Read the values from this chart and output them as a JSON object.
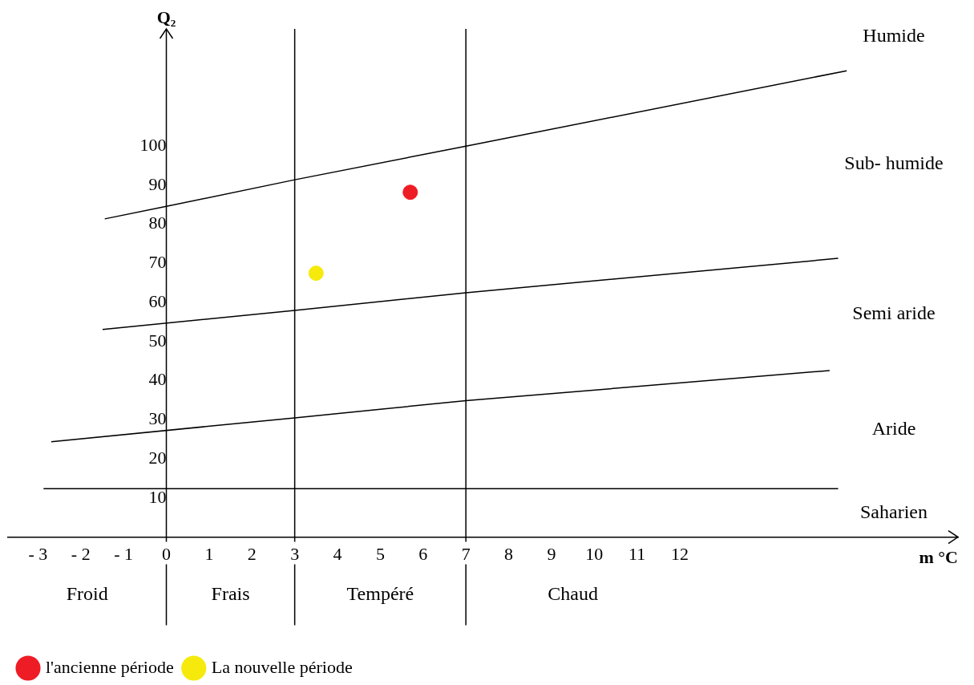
{
  "chart_data": {
    "type": "scatter",
    "xlabel": "m °C",
    "ylabel": "Q₂",
    "xlim": [
      -3.7,
      18.5
    ],
    "ylim": [
      0,
      130
    ],
    "xticks": [
      {
        "value": -3,
        "label": "- 3"
      },
      {
        "value": -2,
        "label": "- 2"
      },
      {
        "value": -1,
        "label": "- 1"
      },
      0,
      1,
      2,
      3,
      4,
      5,
      6,
      7,
      8,
      9,
      10,
      11,
      12
    ],
    "yticks": [
      10,
      20,
      30,
      40,
      50,
      60,
      70,
      80,
      90,
      100
    ],
    "grid": false,
    "legend": "bottom left",
    "marker": "circle",
    "series": [
      {
        "name": "l'ancienne période",
        "color": "#ee1c25",
        "x": [
          5.7
        ],
        "values": [
          88.2
        ]
      },
      {
        "name": "La nouvelle période",
        "color": "#f5ea0c",
        "x": [
          3.5
        ],
        "values": [
          67.5
        ]
      },
      {
        "type": "line",
        "color": "#000000",
        "marker": "none",
        "x": [
          -1.44,
          0,
          3,
          7,
          15.9
        ],
        "values": [
          81.4,
          84.6,
          91.4,
          100,
          119.3
        ]
      },
      {
        "type": "line",
        "color": "#000000",
        "marker": "none",
        "x": [
          -1.49,
          3,
          7,
          15.7
        ],
        "values": [
          53.1,
          58,
          62.5,
          71.3
        ]
      },
      {
        "type": "line",
        "color": "#000000",
        "marker": "none",
        "x": [
          -2.69,
          3,
          7,
          15.5
        ],
        "values": [
          24.4,
          30.5,
          34.9,
          42.6
        ]
      },
      {
        "type": "line",
        "color": "#000000",
        "marker": "none",
        "x": [
          -2.87,
          15.7
        ],
        "values": [
          12.4,
          12.4
        ]
      }
    ],
    "ref_lines": [
      {
        "axis": "x",
        "value": 3
      },
      {
        "axis": "x",
        "value": 7
      }
    ],
    "annotations": [
      "Humide",
      "Sub- humide",
      "Semi aride",
      "Aride",
      "Saharien",
      "Froid",
      "Frais",
      "Tempéré",
      "Chaud"
    ]
  }
}
